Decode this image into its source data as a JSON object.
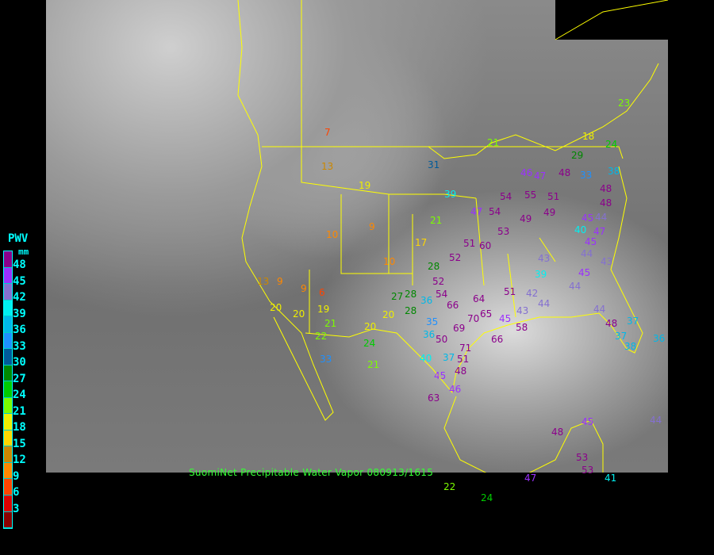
{
  "caption": "SuomiNet Precipitable Water Vapor 080913/1615",
  "legend": {
    "title": "PWV",
    "unit": "mm",
    "ticks": [
      "48",
      "45",
      "42",
      "39",
      "36",
      "33",
      "30",
      "27",
      "24",
      "21",
      "18",
      "15",
      "12",
      "9",
      "6",
      "3"
    ],
    "colors": [
      "#8b008b",
      "#9b30ff",
      "#8470d0",
      "#00f0f0",
      "#00b8e8",
      "#1e90ff",
      "#005a9a",
      "#008800",
      "#00cc00",
      "#7cfc00",
      "#eeee00",
      "#ffd700",
      "#cc8800",
      "#ff8800",
      "#ff4400",
      "#dd0000",
      "#8b0000"
    ]
  },
  "stations": [
    "7",
    "13",
    "19",
    "31",
    "39",
    "21",
    "23",
    "18",
    "24",
    "29",
    "33",
    "38",
    "46",
    "47",
    "48",
    "54",
    "55",
    "51",
    "49",
    "49",
    "54",
    "47",
    "53",
    "51",
    "60",
    "21",
    "17",
    "10",
    "9",
    "10",
    "13",
    "9",
    "9",
    "6",
    "19",
    "20",
    "20",
    "21",
    "22",
    "20",
    "20",
    "24",
    "28",
    "27",
    "28",
    "28",
    "36",
    "35",
    "36",
    "50",
    "69",
    "70",
    "71",
    "66",
    "40",
    "37",
    "51",
    "48",
    "46",
    "63",
    "45",
    "21",
    "24",
    "47",
    "53",
    "53",
    "41",
    "48",
    "45",
    "44",
    "43",
    "39",
    "44",
    "45",
    "44",
    "42",
    "51",
    "43",
    "45",
    "58",
    "45",
    "47",
    "44",
    "43",
    "45",
    "44",
    "40",
    "44",
    "48",
    "37",
    "37",
    "36",
    "38",
    "52",
    "52",
    "66",
    "64",
    "54",
    "65",
    "48",
    "48",
    "33",
    "22"
  ]
}
